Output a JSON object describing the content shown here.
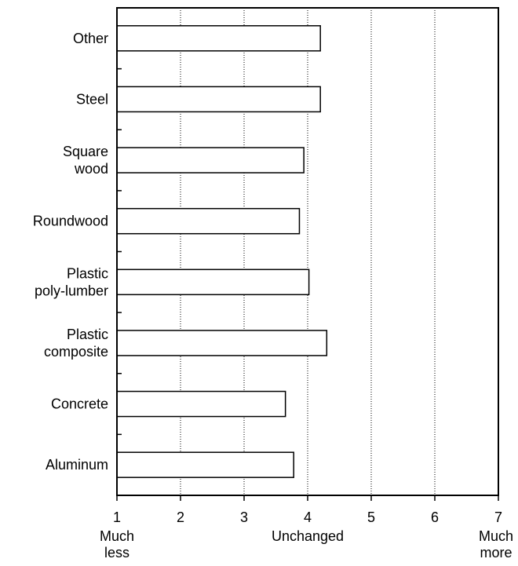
{
  "chart_data": {
    "type": "bar",
    "orientation": "horizontal",
    "categories": [
      [
        "Other"
      ],
      [
        "Steel"
      ],
      [
        "Square",
        "wood"
      ],
      [
        "Roundwood"
      ],
      [
        "Plastic",
        "poly-lumber"
      ],
      [
        "Plastic",
        "composite"
      ],
      [
        "Concrete"
      ],
      [
        "Aluminum"
      ]
    ],
    "values": [
      4.2,
      4.2,
      3.94,
      3.87,
      4.02,
      4.3,
      3.65,
      3.78
    ],
    "xlim": [
      1,
      7
    ],
    "x_ticks": [
      1,
      2,
      3,
      4,
      5,
      6,
      7
    ],
    "x_tick_labels": [
      "1",
      "2",
      "3",
      "4",
      "5",
      "6",
      "7"
    ],
    "x_anchor_labels": [
      {
        "at": 1,
        "lines": [
          "Much",
          "less"
        ]
      },
      {
        "at": 4,
        "lines": [
          "Unchanged"
        ]
      },
      {
        "at": 7,
        "lines": [
          "Much",
          "more"
        ]
      }
    ],
    "grid": "vertical-dotted",
    "legend": "none",
    "title": "",
    "xlabel": "",
    "ylabel": "",
    "colors": {
      "bar_fill": "#ffffff",
      "bar_stroke": "#000000",
      "grid": "#000000",
      "axis": "#000000"
    }
  }
}
